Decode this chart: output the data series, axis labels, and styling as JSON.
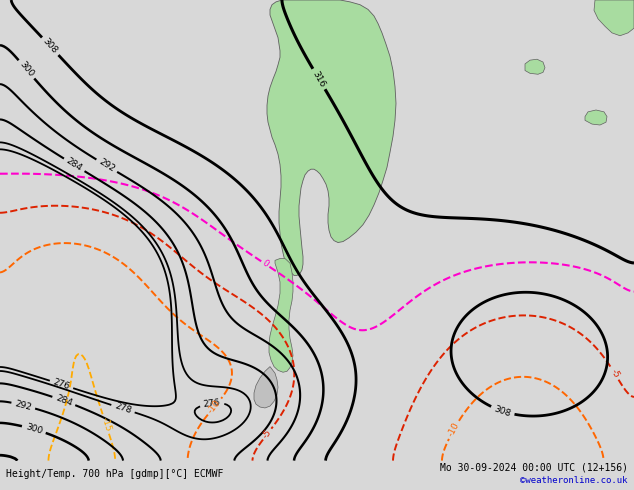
{
  "bottom_left_text": "Height/Temp. 700 hPa [gdmp][°C] ECMWF",
  "bottom_right_text": "Mo 30-09-2024 00:00 UTC (12+156)",
  "bottom_watermark": "©weatheronline.co.uk",
  "bg_color": "#d8d8d8",
  "land_color": "#a8dca0",
  "ocean_color": "#d8d8d8",
  "border_color": "#606060",
  "text_color": "#000000",
  "watermark_color": "#0000cc",
  "fig_width": 6.34,
  "fig_height": 4.9,
  "dpi": 100
}
